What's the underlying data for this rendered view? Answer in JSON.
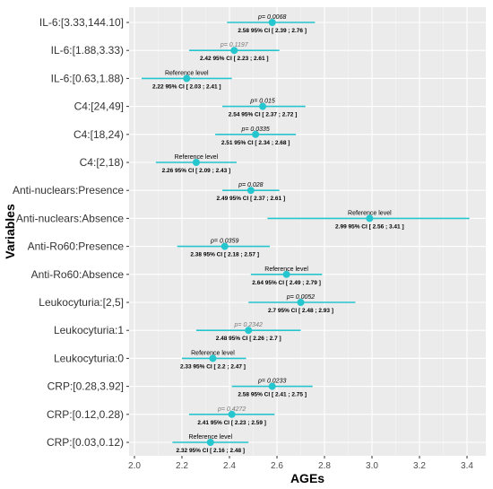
{
  "chart_data": {
    "type": "scatter",
    "title": "",
    "xlabel": "AGEs",
    "ylabel": "Variables",
    "xlim": [
      2.0,
      3.4
    ],
    "xticks": [
      "2.0",
      "2.2",
      "2.4",
      "2.6",
      "2.8",
      "3.0",
      "3.2",
      "3.4"
    ],
    "grid": true,
    "point_color": "#26c6cf",
    "rows": [
      {
        "label": "IL-6:[3.33,144.10]",
        "estimate": 2.58,
        "lower": 2.39,
        "upper": 2.76,
        "top": "p= 0.0068",
        "top_style": "p",
        "ci_text": "2.58 95% CI [ 2.39 ; 2.76 ]"
      },
      {
        "label": "IL-6:[1.88,3.33)",
        "estimate": 2.42,
        "lower": 2.23,
        "upper": 2.61,
        "top": "p= 0.1197",
        "top_style": "p-gray",
        "ci_text": "2.42 95% CI [ 2.23 ; 2.61 ]"
      },
      {
        "label": "IL-6:[0.63,1.88)",
        "estimate": 2.22,
        "lower": 2.03,
        "upper": 2.41,
        "top": "Reference level",
        "top_style": "ref",
        "ci_text": "2.22 95% CI [ 2.03 ; 2.41 ]"
      },
      {
        "label": "C4:[24,49]",
        "estimate": 2.54,
        "lower": 2.37,
        "upper": 2.72,
        "top": "p= 0.015",
        "top_style": "p",
        "ci_text": "2.54 95% CI [ 2.37 ; 2.72 ]"
      },
      {
        "label": "C4:[18,24)",
        "estimate": 2.51,
        "lower": 2.34,
        "upper": 2.68,
        "top": "p= 0.0335",
        "top_style": "p",
        "ci_text": "2.51 95% CI [ 2.34 ; 2.68 ]"
      },
      {
        "label": "C4:[2,18)",
        "estimate": 2.26,
        "lower": 2.09,
        "upper": 2.43,
        "top": "Reference level",
        "top_style": "ref",
        "ci_text": "2.26 95% CI [ 2.09 ; 2.43 ]"
      },
      {
        "label": "Anti-nuclears:Presence",
        "estimate": 2.49,
        "lower": 2.37,
        "upper": 2.61,
        "top": "p= 0.028",
        "top_style": "p",
        "ci_text": "2.49 95% CI [ 2.37 ; 2.61 ]"
      },
      {
        "label": "Anti-nuclears:Absence",
        "estimate": 2.99,
        "lower": 2.56,
        "upper": 3.41,
        "top": "Reference level",
        "top_style": "ref",
        "ci_text": "2.99 95% CI [ 2.56 ; 3.41 ]"
      },
      {
        "label": "Anti-Ro60:Presence",
        "estimate": 2.38,
        "lower": 2.18,
        "upper": 2.57,
        "top": "p= 0.0359",
        "top_style": "p",
        "ci_text": "2.38 95% CI [ 2.18 ; 2.57 ]"
      },
      {
        "label": "Anti-Ro60:Absence",
        "estimate": 2.64,
        "lower": 2.49,
        "upper": 2.79,
        "top": "Reference level",
        "top_style": "ref",
        "ci_text": "2.64 95% CI [ 2.49 ; 2.79 ]"
      },
      {
        "label": "Leukocyturia:[2,5]",
        "estimate": 2.7,
        "lower": 2.48,
        "upper": 2.93,
        "top": "p= 0.0052",
        "top_style": "p",
        "ci_text": "2.7 95% CI [ 2.48 ; 2.93 ]"
      },
      {
        "label": "Leukocyturia:1",
        "estimate": 2.48,
        "lower": 2.26,
        "upper": 2.7,
        "top": "p= 0.2342",
        "top_style": "p-gray",
        "ci_text": "2.48 95% CI [ 2.26 ; 2.7 ]"
      },
      {
        "label": "Leukocyturia:0",
        "estimate": 2.33,
        "lower": 2.2,
        "upper": 2.47,
        "top": "Reference level",
        "top_style": "ref",
        "ci_text": "2.33 95% CI [ 2.2 ; 2.47 ]"
      },
      {
        "label": "CRP:[0.28,3.92]",
        "estimate": 2.58,
        "lower": 2.41,
        "upper": 2.75,
        "top": "p= 0.0233",
        "top_style": "p",
        "ci_text": "2.58 95% CI [ 2.41 ; 2.75 ]"
      },
      {
        "label": "CRP:[0.12,0.28)",
        "estimate": 2.41,
        "lower": 2.23,
        "upper": 2.59,
        "top": "p= 0.4272",
        "top_style": "p-gray",
        "ci_text": "2.41 95% CI [ 2.23 ; 2.59 ]"
      },
      {
        "label": "CRP:[0.03,0.12)",
        "estimate": 2.32,
        "lower": 2.16,
        "upper": 2.48,
        "top": "Reference level",
        "top_style": "ref",
        "ci_text": "2.32 95% CI [ 2.16 ; 2.48 ]"
      }
    ]
  }
}
